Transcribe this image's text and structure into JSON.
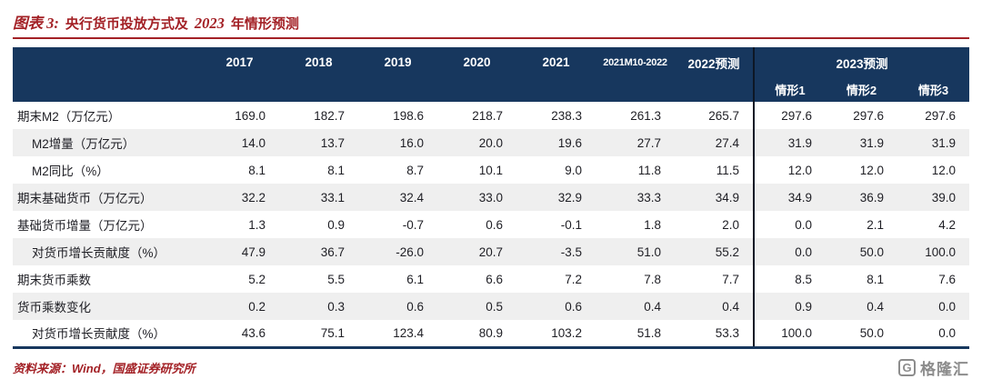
{
  "title": {
    "figure_label": "图表 3:",
    "part1": "央行货币投放方式及",
    "year": "2023",
    "part2": "年情形预测"
  },
  "chart_data": {
    "type": "table",
    "title": "央行货币投放方式及 2023 年情形预测",
    "col_headers": [
      "2017",
      "2018",
      "2019",
      "2020",
      "2021",
      "2021M10-2022",
      "2022预测"
    ],
    "group_2023": {
      "label": "2023预测",
      "sub_headers": [
        "情形1",
        "情形2",
        "情形3"
      ]
    },
    "rows": [
      {
        "label": "期末M2（万亿元）",
        "indent": false,
        "values": [
          169.0,
          182.7,
          198.6,
          218.7,
          238.3,
          261.3,
          265.7,
          297.6,
          297.6,
          297.6
        ]
      },
      {
        "label": "M2增量（万亿元）",
        "indent": true,
        "values": [
          14.0,
          13.7,
          16.0,
          20.0,
          19.6,
          27.7,
          27.4,
          31.9,
          31.9,
          31.9
        ]
      },
      {
        "label": "M2同比（%）",
        "indent": true,
        "values": [
          8.1,
          8.1,
          8.7,
          10.1,
          9.0,
          11.8,
          11.5,
          12.0,
          12.0,
          12.0
        ]
      },
      {
        "label": "期末基础货币（万亿元）",
        "indent": false,
        "values": [
          32.2,
          33.1,
          32.4,
          33.0,
          32.9,
          33.3,
          34.9,
          34.9,
          36.9,
          39.0
        ]
      },
      {
        "label": "基础货币增量（万亿元）",
        "indent": false,
        "values": [
          1.3,
          0.9,
          -0.7,
          0.6,
          -0.1,
          1.8,
          2.0,
          0.0,
          2.1,
          4.2
        ]
      },
      {
        "label": "对货币增长贡献度（%）",
        "indent": true,
        "values": [
          47.9,
          36.7,
          -26.0,
          20.7,
          -3.5,
          51.0,
          55.2,
          0.0,
          50.0,
          100.0
        ]
      },
      {
        "label": "期末货币乘数",
        "indent": false,
        "values": [
          5.2,
          5.5,
          6.1,
          6.6,
          7.2,
          7.8,
          7.7,
          8.5,
          8.1,
          7.6
        ]
      },
      {
        "label": "货币乘数变化",
        "indent": false,
        "values": [
          0.2,
          0.3,
          0.6,
          0.5,
          0.6,
          0.4,
          0.4,
          0.9,
          0.4,
          0.0
        ]
      },
      {
        "label": "对货币增长贡献度（%）",
        "indent": true,
        "values": [
          43.6,
          75.1,
          123.4,
          80.9,
          103.2,
          51.8,
          53.3,
          100.0,
          50.0,
          0.0
        ]
      }
    ]
  },
  "footer": {
    "source": "资料来源：Wind，国盛证券研究所"
  },
  "logo": {
    "icon": "G",
    "text": "格隆汇"
  },
  "colors": {
    "accent_red": "#A32126",
    "header_blue": "#17375E",
    "divider_dark": "#0D1726",
    "stripe_gray": "#EFEFEF",
    "logo_gray": "#8C8C8C"
  }
}
